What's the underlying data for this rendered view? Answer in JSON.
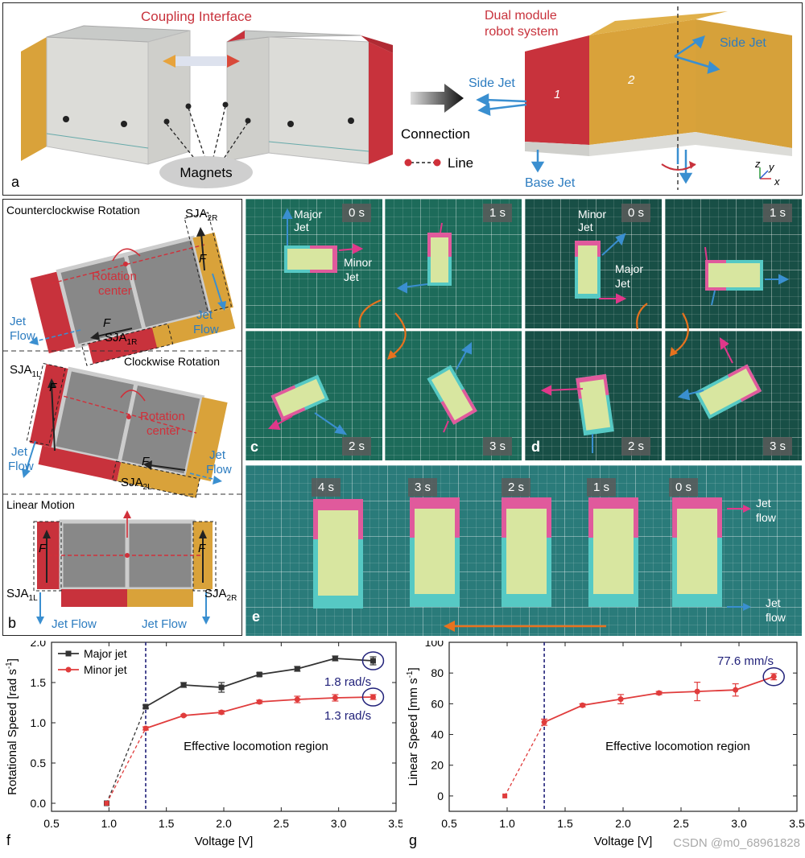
{
  "panel_a": {
    "coupling_interface": "Coupling Interface",
    "magnets": "Magnets",
    "connection": "Connection",
    "line": "Line",
    "dual_module": "Dual module",
    "robot_system": "robot system",
    "side_jet": "Side Jet",
    "base_jet": "Base Jet",
    "module_1": "1",
    "module_2": "2",
    "axis_z": "z",
    "axis_y": "y",
    "axis_x": "x",
    "label": "a",
    "colors": {
      "red": "#c8323c",
      "gold": "#d9a23a",
      "shell": "#dcdcd8",
      "jet_blue": "#3a8fd0"
    }
  },
  "panel_b": {
    "label": "b",
    "ccw_title": "Counterclockwise Rotation",
    "cw_title": "Clockwise Rotation",
    "linear_title": "Linear Motion",
    "rotation_center_1": "Rotation",
    "rotation_center_2": "center",
    "jet": "Jet",
    "flow": "Flow",
    "jet_flow": "Jet Flow",
    "force": "F",
    "sja": "SJA",
    "sub_2r": "2R",
    "sub_1r": "1R",
    "sub_1l": "1L",
    "sub_2l": "2L"
  },
  "panel_c": {
    "label": "c",
    "times": [
      "0 s",
      "1 s",
      "2 s",
      "3 s"
    ],
    "major_1": "Major",
    "major_2": "Jet",
    "minor_1": "Minor",
    "minor_2": "Jet"
  },
  "panel_d": {
    "label": "d",
    "times": [
      "0 s",
      "1 s",
      "2 s",
      "3 s"
    ],
    "minor_1": "Minor",
    "minor_2": "Jet",
    "major_1": "Major",
    "major_2": "Jet"
  },
  "panel_e": {
    "label": "e",
    "times": [
      "4 s",
      "3 s",
      "2 s",
      "1 s",
      "0 s"
    ],
    "jet_1": "Jet",
    "flow_1": "flow",
    "jet_2": "Jet",
    "flow_2": "flow"
  },
  "watermark": "CSDN @m0_68961828",
  "chart_data": [
    {
      "type": "line",
      "panel": "f",
      "xlabel": "Voltage [V]",
      "ylabel": "Rotational Speed [rad s",
      "ylabel_sup": "-1",
      "ylabel_end": "]",
      "xlim": [
        0.5,
        3.5
      ],
      "ylim": [
        -0.1,
        2.0
      ],
      "xticks": [
        "0.5",
        "1.0",
        "1.5",
        "2.0",
        "2.5",
        "3.0",
        "3.5"
      ],
      "yticks": [
        "0.0",
        "0.5",
        "1.0",
        "1.5",
        "2.0"
      ],
      "threshold_x": 1.32,
      "region_label": "Effective locomotion region",
      "annotations": [
        "1.8 rad/s",
        "1.3 rad/s"
      ],
      "series": [
        {
          "name": "Major jet",
          "color": "#333333",
          "x": [
            0.98,
            1.32,
            1.65,
            1.98,
            2.31,
            2.64,
            2.97,
            3.3
          ],
          "y": [
            0.0,
            1.2,
            1.47,
            1.44,
            1.6,
            1.67,
            1.8,
            1.77
          ],
          "err": [
            0,
            0.02,
            0.03,
            0.06,
            0.02,
            0.03,
            0.03,
            0.05
          ]
        },
        {
          "name": "Minor jet",
          "color": "#e03c3c",
          "x": [
            0.98,
            1.32,
            1.65,
            1.98,
            2.31,
            2.64,
            2.97,
            3.3
          ],
          "y": [
            0.0,
            0.93,
            1.09,
            1.13,
            1.26,
            1.29,
            1.31,
            1.32
          ],
          "err": [
            0,
            0.02,
            0.01,
            0.02,
            0.02,
            0.04,
            0.04,
            0.03
          ]
        }
      ]
    },
    {
      "type": "line",
      "panel": "g",
      "xlabel": "Voltage [V]",
      "ylabel": "Linear Speed [mm s",
      "ylabel_sup": "-1",
      "ylabel_end": "]",
      "xlim": [
        0.5,
        3.5
      ],
      "ylim": [
        -10,
        100
      ],
      "xticks": [
        "0.5",
        "1.0",
        "1.5",
        "2.0",
        "2.5",
        "3.0",
        "3.5"
      ],
      "yticks": [
        "0",
        "20",
        "40",
        "60",
        "80",
        "100"
      ],
      "threshold_x": 1.32,
      "region_label": "Effective locomotion region",
      "annotations": [
        "77.6 mm/s"
      ],
      "series": [
        {
          "color": "#e03c3c",
          "x": [
            0.98,
            1.32,
            1.65,
            1.98,
            2.31,
            2.64,
            2.97,
            3.3
          ],
          "y": [
            0,
            48,
            59,
            63,
            67,
            68,
            69,
            77.6
          ],
          "err": [
            0,
            2,
            1,
            3,
            1,
            6,
            4,
            2
          ]
        }
      ]
    }
  ]
}
